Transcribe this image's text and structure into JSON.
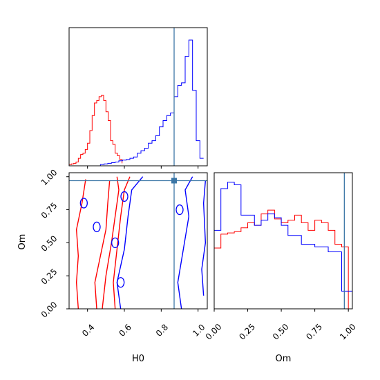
{
  "chart_data": [
    {
      "type": "histogram",
      "panel": "H0 marginal",
      "xlim": [
        0.3,
        1.05
      ],
      "truth_x": 0.87,
      "series": [
        {
          "color": "#ff0000",
          "bins": [
            0.3,
            0.3125,
            0.325,
            0.3375,
            0.35,
            0.3625,
            0.375,
            0.3875,
            0.4,
            0.4125,
            0.425,
            0.4375,
            0.45,
            0.4625,
            0.475,
            0.4875,
            0.5,
            0.5125,
            0.525,
            0.5375,
            0.55,
            0.5625,
            0.575,
            0.5875
          ],
          "counts": [
            0.01,
            0.015,
            0.02,
            0.03,
            0.06,
            0.09,
            0.1,
            0.13,
            0.18,
            0.28,
            0.4,
            0.5,
            0.52,
            0.55,
            0.56,
            0.52,
            0.43,
            0.36,
            0.2,
            0.17,
            0.1,
            0.08,
            0.05,
            0.02
          ]
        },
        {
          "color": "#0000ff",
          "bins": [
            0.47,
            0.49,
            0.51,
            0.53,
            0.55,
            0.57,
            0.59,
            0.61,
            0.63,
            0.65,
            0.67,
            0.69,
            0.71,
            0.73,
            0.75,
            0.77,
            0.79,
            0.81,
            0.83,
            0.85,
            0.87,
            0.89,
            0.91,
            0.93,
            0.95,
            0.97,
            0.99,
            1.01,
            1.03
          ],
          "counts": [
            0.01,
            0.015,
            0.02,
            0.025,
            0.03,
            0.04,
            0.045,
            0.05,
            0.06,
            0.07,
            0.1,
            0.12,
            0.14,
            0.18,
            0.2,
            0.24,
            0.31,
            0.36,
            0.4,
            0.42,
            0.55,
            0.64,
            0.66,
            0.87,
            1.0,
            0.6,
            0.2,
            0.06,
            0.06
          ]
        }
      ]
    },
    {
      "type": "contour",
      "panel": "H0 vs Om",
      "xlabel": "H0",
      "ylabel": "Om",
      "xlim": [
        0.3,
        1.05
      ],
      "ylim": [
        0.0,
        1.03
      ],
      "xticks": [
        "0.4",
        "0.6",
        "0.8",
        "1.0"
      ],
      "xtick_values": [
        0.4,
        0.6,
        0.8,
        1.0
      ],
      "yticks": [
        "0.00",
        "0.25",
        "0.50",
        "0.75",
        "1.00"
      ],
      "ytick_values": [
        0.0,
        0.25,
        0.5,
        0.75,
        1.0
      ],
      "truth": [
        0.87,
        0.97
      ],
      "series": [
        {
          "color": "#ff0000",
          "contours": [
            [
              [
                0.35,
                0.0
              ],
              [
                0.34,
                0.2
              ],
              [
                0.35,
                0.4
              ],
              [
                0.34,
                0.6
              ],
              [
                0.37,
                0.8
              ],
              [
                0.39,
                0.98
              ]
            ],
            [
              [
                0.45,
                0.0
              ],
              [
                0.44,
                0.2
              ],
              [
                0.47,
                0.4
              ],
              [
                0.5,
                0.6
              ],
              [
                0.51,
                0.8
              ],
              [
                0.52,
                0.97
              ]
            ],
            [
              [
                0.48,
                0.0
              ],
              [
                0.5,
                0.25
              ],
              [
                0.53,
                0.5
              ],
              [
                0.55,
                0.7
              ],
              [
                0.57,
                0.9
              ],
              [
                0.56,
                1.0
              ]
            ],
            [
              [
                0.55,
                0.0
              ],
              [
                0.54,
                0.2
              ],
              [
                0.56,
                0.45
              ],
              [
                0.58,
                0.7
              ],
              [
                0.6,
                0.9
              ],
              [
                0.63,
                1.0
              ]
            ]
          ]
        },
        {
          "color": "#0000ff",
          "contours": [
            [
              [
                0.58,
                0.0
              ],
              [
                0.56,
                0.2
              ],
              [
                0.6,
                0.45
              ],
              [
                0.62,
                0.7
              ],
              [
                0.64,
                0.9
              ],
              [
                0.7,
                1.0
              ]
            ],
            [
              [
                0.91,
                0.0
              ],
              [
                0.89,
                0.2
              ],
              [
                0.92,
                0.45
              ],
              [
                0.95,
                0.7
              ],
              [
                0.93,
                0.9
              ],
              [
                0.97,
                1.0
              ]
            ],
            [
              [
                1.03,
                0.1
              ],
              [
                1.02,
                0.3
              ],
              [
                1.04,
                0.5
              ],
              [
                1.03,
                0.8
              ],
              [
                1.04,
                0.97
              ]
            ]
          ]
        }
      ]
    },
    {
      "type": "histogram",
      "panel": "Om marginal",
      "xlabel": "Om",
      "xlim": [
        0.0,
        1.03
      ],
      "xticks": [
        "0.00",
        "0.25",
        "0.50",
        "0.75",
        "1.00"
      ],
      "xtick_values": [
        0.0,
        0.25,
        0.5,
        0.75,
        1.0
      ],
      "truth_x": 0.97,
      "series": [
        {
          "color": "#ff0000",
          "bins": [
            0.0,
            0.05,
            0.1,
            0.15,
            0.2,
            0.25,
            0.3,
            0.35,
            0.4,
            0.45,
            0.5,
            0.55,
            0.6,
            0.65,
            0.7,
            0.75,
            0.8,
            0.85,
            0.9,
            0.95,
            1.0
          ],
          "counts": [
            0.48,
            0.59,
            0.6,
            0.61,
            0.64,
            0.68,
            0.66,
            0.75,
            0.78,
            0.71,
            0.68,
            0.7,
            0.74,
            0.68,
            0.62,
            0.7,
            0.68,
            0.62,
            0.51,
            0.49
          ]
        },
        {
          "color": "#0000ff",
          "bins": [
            0.0,
            0.05,
            0.1,
            0.15,
            0.2,
            0.25,
            0.3,
            0.35,
            0.4,
            0.45,
            0.5,
            0.55,
            0.6,
            0.65,
            0.7,
            0.75,
            0.8,
            0.85,
            0.9,
            0.95,
            1.0,
            1.03
          ],
          "counts": [
            0.62,
            0.95,
            1.0,
            0.98,
            0.74,
            0.74,
            0.66,
            0.7,
            0.75,
            0.72,
            0.66,
            0.58,
            0.58,
            0.51,
            0.51,
            0.49,
            0.49,
            0.45,
            0.45,
            0.14,
            0.14
          ]
        }
      ]
    }
  ]
}
